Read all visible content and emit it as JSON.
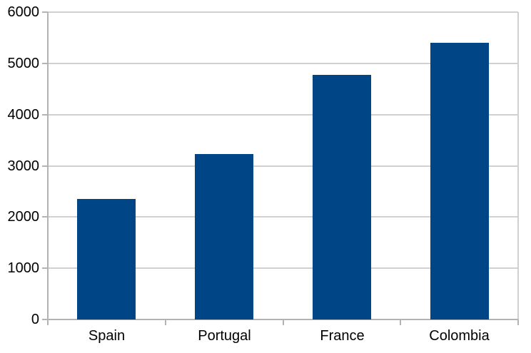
{
  "chart_data": {
    "type": "bar",
    "title": "",
    "xlabel": "",
    "ylabel": "",
    "categories": [
      "Spain",
      "Portugal",
      "France",
      "Colombia"
    ],
    "values": [
      2350,
      3230,
      4780,
      5400
    ],
    "ylim": [
      0,
      6000
    ],
    "ytick_interval": 1000,
    "ytick_labels": [
      "0",
      "1000",
      "2000",
      "3000",
      "4000",
      "5000",
      "6000"
    ],
    "grid": "horizontal",
    "legend": "none",
    "colors": {
      "bar": "#004586",
      "gridline": "#d0d0d0",
      "plot_border": "#d0d0d0",
      "axis": "#b3b3b3",
      "text": "#000000",
      "background": "#ffffff"
    }
  }
}
